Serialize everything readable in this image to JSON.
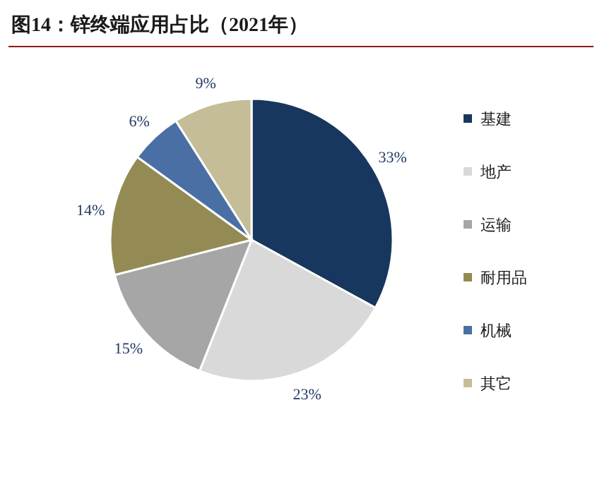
{
  "chart_data": {
    "type": "pie",
    "title": "图14：锌终端应用占比（2021年）",
    "categories": [
      "基建",
      "地产",
      "运输",
      "耐用品",
      "机械",
      "其它"
    ],
    "values": [
      33,
      23,
      15,
      14,
      6,
      9
    ],
    "colors": [
      "#17375e",
      "#d9d9d9",
      "#a6a6a6",
      "#948a54",
      "#4a6fa5",
      "#c4bd97"
    ],
    "value_labels": [
      "33%",
      "23%",
      "15%",
      "14%",
      "6%",
      "9%"
    ],
    "legend": "right"
  }
}
